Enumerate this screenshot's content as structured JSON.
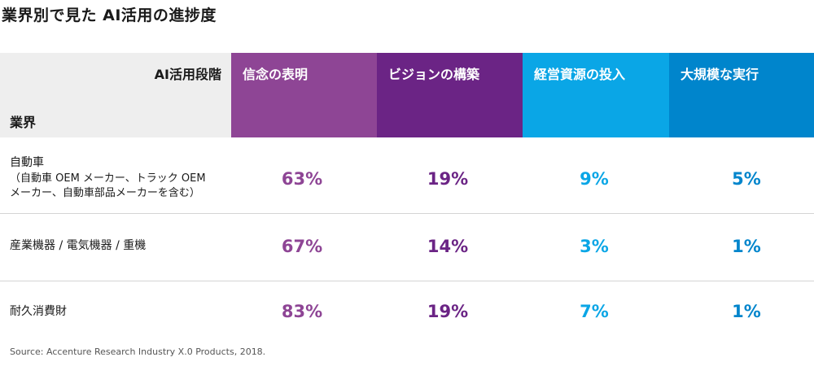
{
  "title": "業界別で見た AI活用の進捗度",
  "header": {
    "stage_label": "AI活用段階",
    "industry_label": "業界"
  },
  "chart_data": {
    "type": "table",
    "stages": [
      {
        "name": "信念の表明",
        "color": "#8e4595"
      },
      {
        "name": "ビジョンの構築",
        "color": "#6b2485"
      },
      {
        "name": "経営資源の投入",
        "color": "#0aa6e6"
      },
      {
        "name": "大規模な実行",
        "color": "#0085cc"
      }
    ],
    "rows": [
      {
        "industry": "自動車",
        "sub1": "（自動車 OEM メーカー、トラック OEM",
        "sub2": "メーカー、自動車部品メーカーを含む）",
        "values": [
          "63%",
          "19%",
          "9%",
          "5%"
        ]
      },
      {
        "industry": "産業機器 / 電気機器 / 重機",
        "values": [
          "67%",
          "14%",
          "3%",
          "1%"
        ]
      },
      {
        "industry": "耐久消費財",
        "values": [
          "83%",
          "19%",
          "7%",
          "1%"
        ]
      }
    ]
  },
  "source": "Source: Accenture Research Industry X.0 Products, 2018."
}
